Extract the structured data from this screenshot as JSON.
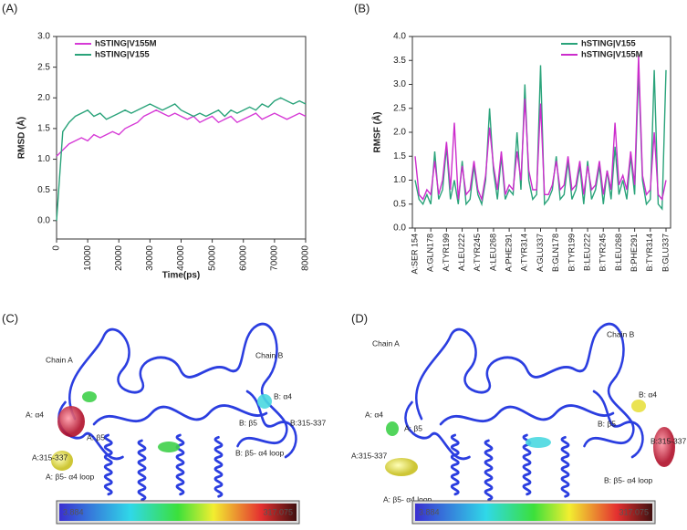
{
  "chart_data": [
    {
      "type": "line",
      "panel": "(A)",
      "xlabel": "Time(ps)",
      "ylabel": "RMSD (Å)",
      "x": [
        0,
        2000,
        4000,
        6000,
        8000,
        10000,
        12000,
        14000,
        16000,
        18000,
        20000,
        22000,
        24000,
        26000,
        28000,
        30000,
        32000,
        34000,
        36000,
        38000,
        40000,
        42000,
        44000,
        46000,
        48000,
        50000,
        52000,
        54000,
        56000,
        58000,
        60000,
        62000,
        64000,
        66000,
        68000,
        70000,
        72000,
        74000,
        76000,
        78000,
        80000
      ],
      "xlim": [
        0,
        80000
      ],
      "xticks": [
        0,
        10000,
        20000,
        30000,
        40000,
        50000,
        60000,
        70000,
        80000
      ],
      "ylim": [
        -0.3,
        3.0
      ],
      "yticks": [
        {
          "value": 0,
          "label": "0.0"
        },
        0.5,
        {
          "value": 1,
          "label": "1.0"
        },
        1.5,
        {
          "value": 2,
          "label": "2.0"
        },
        2.5,
        {
          "value": 3,
          "label": "3.0"
        }
      ],
      "legend": "upper left",
      "series": [
        {
          "name": "hSTING|V155M",
          "color": "#d63ad6",
          "values": [
            1.05,
            1.15,
            1.25,
            1.3,
            1.35,
            1.3,
            1.4,
            1.35,
            1.4,
            1.45,
            1.4,
            1.5,
            1.55,
            1.6,
            1.7,
            1.75,
            1.8,
            1.75,
            1.7,
            1.75,
            1.7,
            1.65,
            1.7,
            1.6,
            1.65,
            1.7,
            1.6,
            1.65,
            1.7,
            1.6,
            1.65,
            1.7,
            1.75,
            1.65,
            1.7,
            1.75,
            1.7,
            1.65,
            1.7,
            1.75,
            1.7
          ]
        },
        {
          "name": "hSTING|V155",
          "color": "#2aa37a",
          "values": [
            0.0,
            1.45,
            1.6,
            1.7,
            1.75,
            1.8,
            1.7,
            1.75,
            1.65,
            1.7,
            1.75,
            1.8,
            1.75,
            1.8,
            1.85,
            1.9,
            1.85,
            1.8,
            1.85,
            1.9,
            1.8,
            1.75,
            1.7,
            1.75,
            1.7,
            1.75,
            1.8,
            1.7,
            1.8,
            1.75,
            1.8,
            1.85,
            1.8,
            1.9,
            1.85,
            1.95,
            2.0,
            1.95,
            1.9,
            1.95,
            1.9
          ]
        }
      ]
    },
    {
      "type": "line",
      "panel": "(B)",
      "ylabel": "RMSF (Å)",
      "categories": [
        "A:SER 154",
        null,
        null,
        null,
        "A:GLN178",
        null,
        null,
        null,
        "A:TYR199",
        null,
        null,
        null,
        "A:LEU222",
        null,
        null,
        null,
        "A:TYR245",
        null,
        null,
        null,
        "A:LEU268",
        null,
        null,
        null,
        "A:PHE291",
        null,
        null,
        null,
        "A:TYR314",
        null,
        null,
        null,
        "A:GLU337",
        null,
        null,
        null,
        "B:GLN178",
        null,
        null,
        null,
        "B:TYR199",
        null,
        null,
        null,
        "B:LEU222",
        null,
        null,
        null,
        "B:TYR245",
        null,
        null,
        null,
        "B:LEU268",
        null,
        null,
        null,
        "B:PHE291",
        null,
        null,
        null,
        "B:TYR314",
        null,
        null,
        null,
        "B:GLU337"
      ],
      "ylim": [
        0,
        4.0
      ],
      "yticks": [
        {
          "value": 0,
          "label": "0.0"
        },
        0.5,
        {
          "value": 1,
          "label": "1.0"
        },
        1.5,
        {
          "value": 2,
          "label": "2.0"
        },
        2.5,
        {
          "value": 3,
          "label": "3.0"
        },
        3.5,
        {
          "value": 4,
          "label": "4.0"
        }
      ],
      "legend": "upper right",
      "series": [
        {
          "name": "hSTING|V155",
          "color": "#2aa37a",
          "values": [
            1.0,
            0.6,
            0.5,
            0.7,
            0.5,
            1.6,
            0.6,
            0.8,
            1.7,
            0.6,
            1.0,
            0.5,
            1.4,
            0.5,
            0.6,
            1.3,
            0.7,
            0.5,
            1.0,
            2.5,
            1.2,
            0.6,
            1.5,
            0.6,
            0.8,
            0.7,
            2.0,
            0.8,
            3.0,
            1.0,
            0.6,
            0.7,
            3.4,
            0.5,
            0.6,
            0.8,
            1.5,
            0.6,
            0.7,
            1.4,
            0.6,
            0.8,
            1.3,
            0.5,
            1.4,
            0.6,
            0.8,
            1.3,
            0.5,
            1.2,
            0.6,
            1.7,
            0.7,
            1.0,
            0.6,
            1.5,
            0.7,
            3.3,
            1.0,
            0.5,
            0.6,
            3.3,
            0.5,
            0.4,
            3.3
          ]
        },
        {
          "name": "hSTING|V155M",
          "color": "#cc2ccc",
          "values": [
            1.5,
            0.7,
            0.6,
            0.8,
            0.7,
            1.4,
            0.7,
            1.0,
            1.8,
            0.8,
            2.2,
            0.6,
            1.3,
            0.7,
            0.8,
            1.4,
            0.8,
            0.6,
            1.1,
            2.1,
            1.3,
            0.8,
            1.6,
            0.7,
            0.9,
            0.8,
            1.6,
            1.0,
            2.7,
            1.2,
            0.8,
            0.8,
            2.6,
            0.7,
            0.7,
            0.9,
            1.4,
            0.8,
            0.9,
            1.5,
            0.8,
            0.9,
            1.4,
            0.7,
            1.3,
            0.8,
            0.9,
            1.4,
            0.7,
            1.2,
            0.8,
            2.2,
            0.9,
            1.1,
            0.8,
            1.6,
            0.9,
            3.6,
            1.1,
            0.7,
            0.8,
            2.0,
            0.7,
            0.6,
            1.0
          ]
        }
      ]
    }
  ],
  "structure_panels": [
    {
      "label": "(C)",
      "annotations": [
        "Chain A",
        "Chain B",
        "A: α4",
        "A: β5",
        "A:315-337",
        "A: β5- α4 loop",
        "B: α4",
        "B: β5",
        "B:315-337",
        "B: β5- α4 loop"
      ],
      "colorbar": [
        "3.884",
        "317.075"
      ]
    },
    {
      "label": "(D)",
      "annotations": [
        "Chain A",
        "Chain B",
        "A: α4",
        "A: β5",
        "A:315-337",
        "A: β5- α4 loop",
        "B: α4",
        "B: β5",
        "B:315-337",
        "B: β5- α4 loop"
      ],
      "colorbar": [
        "3.884",
        "317.075"
      ]
    }
  ]
}
